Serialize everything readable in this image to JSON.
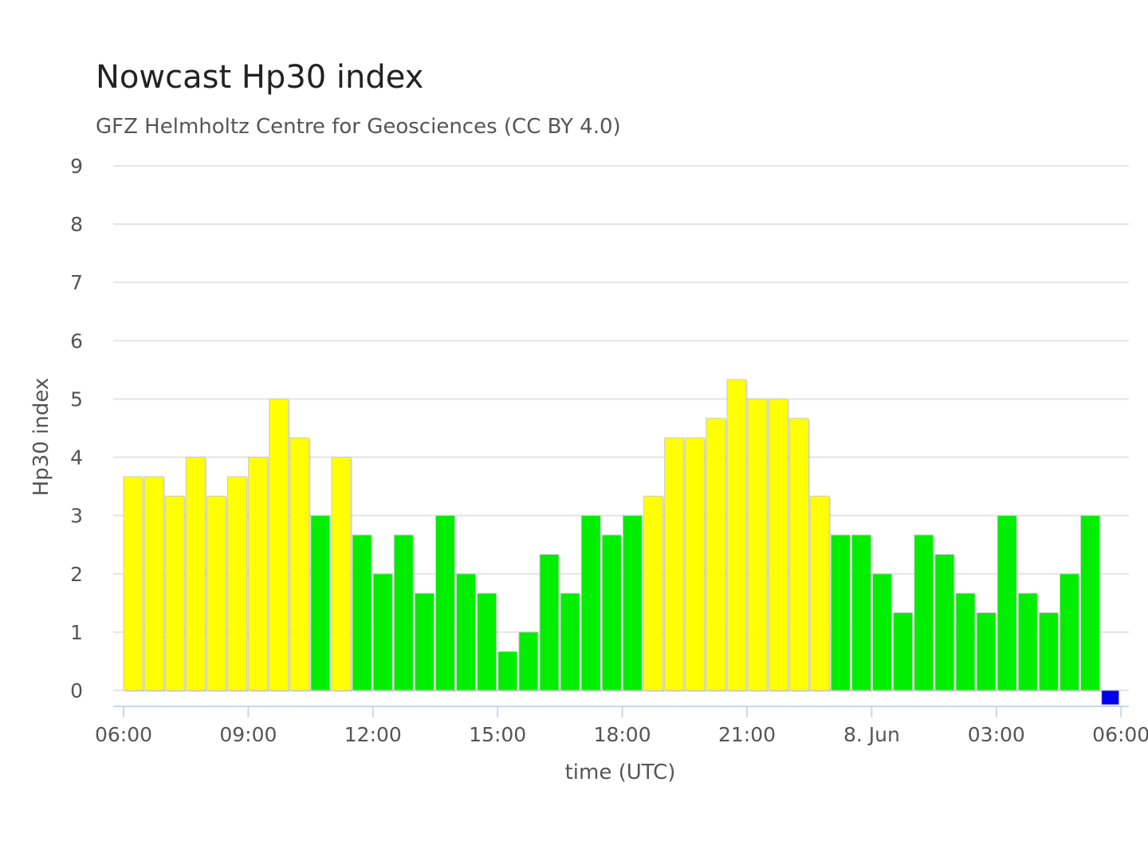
{
  "chart_data": {
    "type": "bar",
    "title": "Nowcast Hp30 index",
    "subtitle": "GFZ Helmholtz Centre for Geosciences (CC BY 4.0)",
    "xlabel": "time (UTC)",
    "ylabel": "Hp30 index",
    "ylim": [
      0,
      9
    ],
    "yticks": [
      "0",
      "1",
      "2",
      "3",
      "4",
      "5",
      "6",
      "7",
      "8",
      "9"
    ],
    "xticks": [
      "06:00",
      "09:00",
      "12:00",
      "15:00",
      "18:00",
      "21:00",
      "8. Jun",
      "03:00",
      "06:00"
    ],
    "grid": true,
    "legend": "none",
    "interval": "30 min",
    "start": "06:00",
    "colors": {
      "low": "#00ee00",
      "elevated": "#ffff00",
      "nowcast": "#0000ee",
      "grid": "#e4e4e4",
      "axis": "#ccd6eb"
    },
    "series": [
      {
        "values": [
          3.667,
          3.667,
          3.333,
          4.0,
          3.333,
          3.667,
          4.0,
          5.0,
          4.333,
          3.0,
          4.0,
          2.667,
          2.0,
          2.667,
          1.667,
          3.0,
          2.0,
          1.667,
          0.667,
          1.0,
          2.333,
          1.667,
          3.0,
          2.667,
          3.0,
          3.333,
          4.333,
          4.333,
          4.667,
          5.333,
          5.0,
          5.0,
          4.667,
          3.333,
          2.667,
          2.667,
          2.0,
          1.333,
          2.667,
          2.333,
          1.667,
          1.333,
          3.0,
          1.667,
          1.333,
          2.0,
          3.0,
          0.0
        ],
        "bar_colors": [
          "yellow",
          "yellow",
          "yellow",
          "yellow",
          "yellow",
          "yellow",
          "yellow",
          "yellow",
          "yellow",
          "green",
          "yellow",
          "green",
          "green",
          "green",
          "green",
          "green",
          "green",
          "green",
          "green",
          "green",
          "green",
          "green",
          "green",
          "green",
          "green",
          "yellow",
          "yellow",
          "yellow",
          "yellow",
          "yellow",
          "yellow",
          "yellow",
          "yellow",
          "yellow",
          "green",
          "green",
          "green",
          "green",
          "green",
          "green",
          "green",
          "green",
          "green",
          "green",
          "green",
          "green",
          "green",
          "blue"
        ]
      }
    ]
  }
}
